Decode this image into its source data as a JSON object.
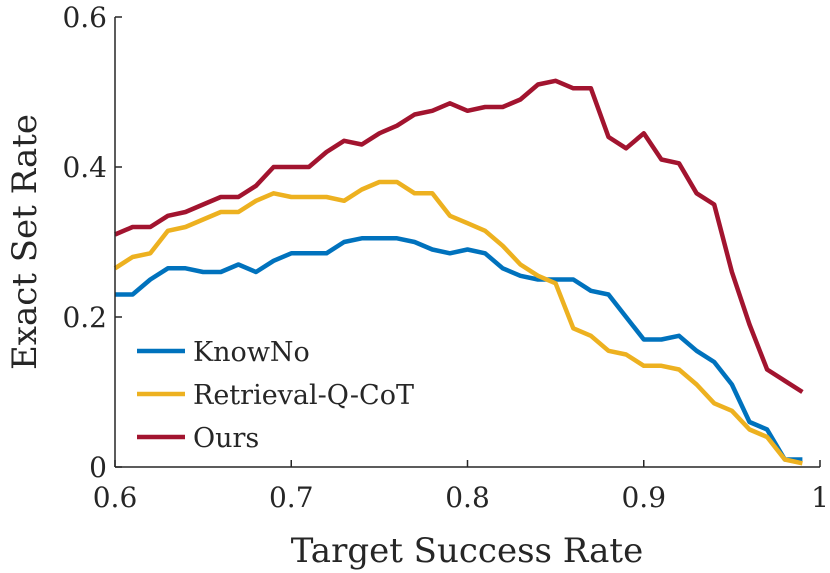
{
  "chart_data": {
    "type": "line",
    "title": "",
    "xlabel": "Target Success Rate",
    "ylabel": "Exact Set Rate",
    "xlim": [
      0.6,
      1.0
    ],
    "ylim": [
      0,
      0.6
    ],
    "xticks": [
      {
        "value": 0.6,
        "label": "0.6"
      },
      {
        "value": 0.7,
        "label": "0.7"
      },
      {
        "value": 0.8,
        "label": "0.8"
      },
      {
        "value": 0.9,
        "label": "0.9"
      },
      {
        "value": 1.0,
        "label": "1"
      }
    ],
    "yticks": [
      {
        "value": 0.0,
        "label": "0"
      },
      {
        "value": 0.2,
        "label": "0.2"
      },
      {
        "value": 0.4,
        "label": "0.4"
      },
      {
        "value": 0.6,
        "label": "0.6"
      }
    ],
    "legend_position": "bottom-left",
    "grid": false,
    "x": [
      0.6,
      0.61,
      0.62,
      0.63,
      0.64,
      0.65,
      0.66,
      0.67,
      0.68,
      0.69,
      0.7,
      0.71,
      0.72,
      0.73,
      0.74,
      0.75,
      0.76,
      0.77,
      0.78,
      0.79,
      0.8,
      0.81,
      0.82,
      0.83,
      0.84,
      0.85,
      0.86,
      0.87,
      0.88,
      0.89,
      0.9,
      0.91,
      0.92,
      0.93,
      0.94,
      0.95,
      0.96,
      0.97,
      0.98,
      0.99
    ],
    "series": [
      {
        "name": "KnowNo",
        "color": "#0072bd",
        "values": [
          0.23,
          0.23,
          0.25,
          0.265,
          0.265,
          0.26,
          0.26,
          0.27,
          0.26,
          0.275,
          0.285,
          0.285,
          0.285,
          0.3,
          0.305,
          0.305,
          0.305,
          0.3,
          0.29,
          0.285,
          0.29,
          0.285,
          0.265,
          0.255,
          0.25,
          0.25,
          0.25,
          0.235,
          0.23,
          0.2,
          0.17,
          0.17,
          0.175,
          0.155,
          0.14,
          0.11,
          0.06,
          0.05,
          0.01,
          0.01
        ]
      },
      {
        "name": "Retrieval-Q-CoT",
        "color": "#edb120",
        "values": [
          0.265,
          0.28,
          0.285,
          0.315,
          0.32,
          0.33,
          0.34,
          0.34,
          0.355,
          0.365,
          0.36,
          0.36,
          0.36,
          0.355,
          0.37,
          0.38,
          0.38,
          0.365,
          0.365,
          0.335,
          0.325,
          0.315,
          0.295,
          0.27,
          0.255,
          0.245,
          0.185,
          0.175,
          0.155,
          0.15,
          0.135,
          0.135,
          0.13,
          0.11,
          0.085,
          0.075,
          0.05,
          0.04,
          0.01,
          0.005
        ]
      },
      {
        "name": "Ours",
        "color": "#a2142f",
        "values": [
          0.31,
          0.32,
          0.32,
          0.335,
          0.34,
          0.35,
          0.36,
          0.36,
          0.375,
          0.4,
          0.4,
          0.4,
          0.42,
          0.435,
          0.43,
          0.445,
          0.455,
          0.47,
          0.475,
          0.485,
          0.475,
          0.48,
          0.48,
          0.49,
          0.51,
          0.515,
          0.505,
          0.505,
          0.44,
          0.425,
          0.445,
          0.41,
          0.405,
          0.365,
          0.35,
          0.26,
          0.19,
          0.13,
          0.115,
          0.1
        ]
      }
    ]
  }
}
